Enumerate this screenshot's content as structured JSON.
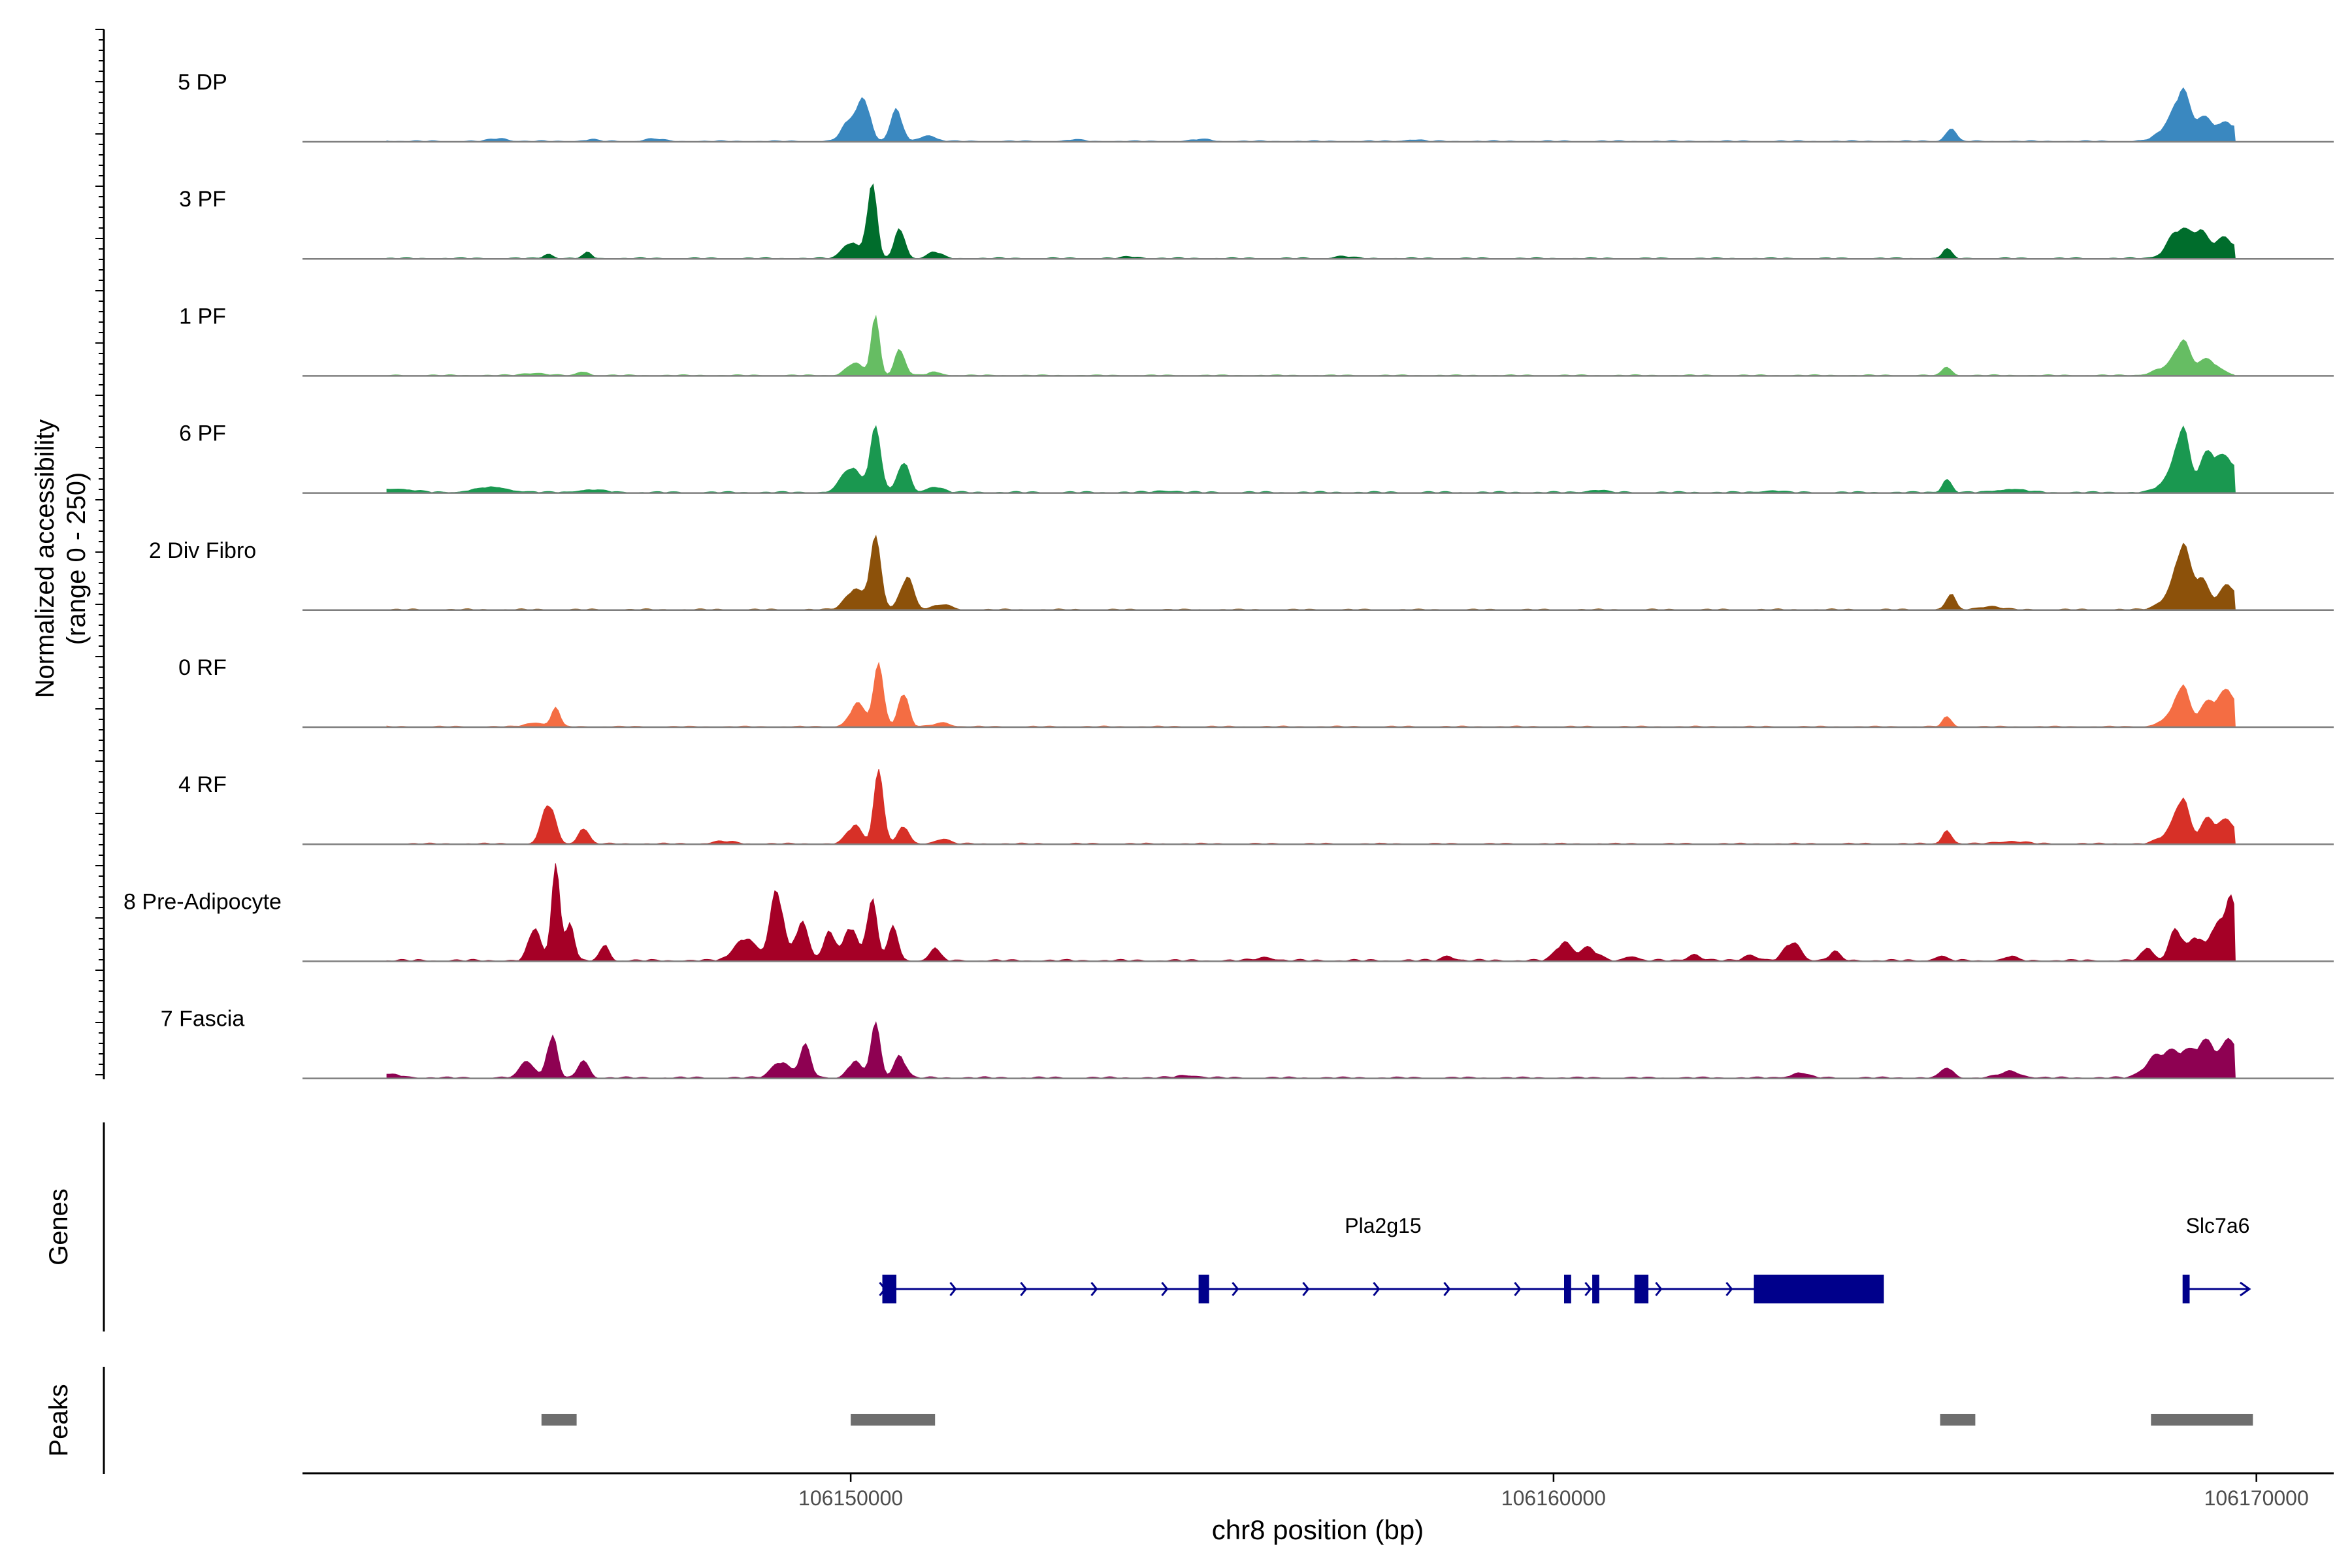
{
  "chart_data": {
    "type": "area",
    "title": "",
    "xlabel": "chr8 position (bp)",
    "ylabel_line1": "Normalized accessibility",
    "ylabel_line2": "(range 0 - 250)",
    "xlim": [
      106142200,
      106171100
    ],
    "ylim": [
      0,
      250
    ],
    "x_ticks": [
      {
        "value": 106150000,
        "label": "106150000"
      },
      {
        "value": 106160000,
        "label": "106160000"
      },
      {
        "value": 106170000,
        "label": "106170000"
      }
    ],
    "data_end": 106169700,
    "tracks": [
      {
        "name": "5 DP",
        "color": "#3a88c0",
        "peaks": [
          [
            106143200,
            5,
            150
          ],
          [
            106145000,
            7,
            120
          ],
          [
            106146300,
            4,
            100
          ],
          [
            106147200,
            6,
            120
          ],
          [
            106150000,
            55,
            110
          ],
          [
            106150200,
            95,
            80
          ],
          [
            106150650,
            75,
            80
          ],
          [
            106151100,
            14,
            110
          ],
          [
            106153200,
            4,
            100
          ],
          [
            106155000,
            5,
            120
          ],
          [
            106158000,
            4,
            120
          ],
          [
            106165650,
            32,
            70
          ],
          [
            106168850,
            55,
            180
          ],
          [
            106168950,
            78,
            90
          ],
          [
            106169250,
            50,
            120
          ],
          [
            106169600,
            45,
            150
          ]
        ],
        "noise": 3
      },
      {
        "name": "3 PF",
        "color": "#006d2c",
        "peaks": [
          [
            106145700,
            12,
            60
          ],
          [
            106146250,
            14,
            60
          ],
          [
            106150000,
            40,
            110
          ],
          [
            106150300,
            175,
            70
          ],
          [
            106150700,
            75,
            70
          ],
          [
            106151200,
            16,
            90
          ],
          [
            106154000,
            4,
            120
          ],
          [
            106157000,
            5,
            120
          ],
          [
            106165600,
            25,
            60
          ],
          [
            106168900,
            70,
            150
          ],
          [
            106169200,
            55,
            110
          ],
          [
            106169550,
            50,
            150
          ]
        ],
        "noise": 3
      },
      {
        "name": "1 PF",
        "color": "#66bd63",
        "peaks": [
          [
            106145500,
            6,
            150
          ],
          [
            106146200,
            10,
            70
          ],
          [
            106150050,
            30,
            110
          ],
          [
            106150350,
            135,
            60
          ],
          [
            106150700,
            65,
            70
          ],
          [
            106151200,
            8,
            100
          ],
          [
            106165600,
            22,
            60
          ],
          [
            106168800,
            25,
            200
          ],
          [
            106168950,
            65,
            90
          ],
          [
            106169300,
            38,
            150
          ]
        ],
        "noise": 3
      },
      {
        "name": "6 PF",
        "color": "#1a9850",
        "peaks": [
          [
            106143500,
            9,
            250
          ],
          [
            106144900,
            12,
            250
          ],
          [
            106146300,
            6,
            200
          ],
          [
            106150000,
            60,
            130
          ],
          [
            106150350,
            150,
            80
          ],
          [
            106150750,
            75,
            80
          ],
          [
            106151200,
            14,
            110
          ],
          [
            106154500,
            4,
            150
          ],
          [
            106160600,
            6,
            120
          ],
          [
            106163100,
            5,
            120
          ],
          [
            106165600,
            35,
            60
          ],
          [
            106166500,
            8,
            200
          ],
          [
            106168800,
            40,
            150
          ],
          [
            106168950,
            135,
            90
          ],
          [
            106169300,
            85,
            120
          ],
          [
            106169600,
            80,
            150
          ]
        ],
        "noise": 4
      },
      {
        "name": "2 Div Fibro",
        "color": "#8c510a",
        "peaks": [
          [
            106150050,
            50,
            120
          ],
          [
            106150350,
            165,
            80
          ],
          [
            106150800,
            80,
            90
          ],
          [
            106151300,
            12,
            120
          ],
          [
            106165650,
            40,
            60
          ],
          [
            106166200,
            8,
            150
          ],
          [
            106168800,
            40,
            150
          ],
          [
            106168950,
            130,
            90
          ],
          [
            106169200,
            75,
            110
          ],
          [
            106169600,
            60,
            130
          ]
        ],
        "noise": 3
      },
      {
        "name": "0 RF",
        "color": "#f46d43",
        "peaks": [
          [
            106145500,
            10,
            120
          ],
          [
            106145800,
            45,
            60
          ],
          [
            106150100,
            55,
            110
          ],
          [
            106150400,
            145,
            70
          ],
          [
            106150750,
            85,
            70
          ],
          [
            106151300,
            10,
            110
          ],
          [
            106165600,
            25,
            60
          ],
          [
            106168800,
            25,
            150
          ],
          [
            106168950,
            85,
            90
          ],
          [
            106169300,
            55,
            120
          ],
          [
            106169600,
            85,
            130
          ]
        ],
        "noise": 3
      },
      {
        "name": "4 RF",
        "color": "#d73027",
        "peaks": [
          [
            106145700,
            100,
            90
          ],
          [
            106146200,
            40,
            70
          ],
          [
            106148200,
            6,
            150
          ],
          [
            106150050,
            45,
            100
          ],
          [
            106150400,
            170,
            70
          ],
          [
            106150750,
            45,
            70
          ],
          [
            106151300,
            12,
            100
          ],
          [
            106165600,
            35,
            60
          ],
          [
            106166500,
            6,
            200
          ],
          [
            106168800,
            30,
            150
          ],
          [
            106168950,
            95,
            90
          ],
          [
            106169300,
            55,
            110
          ],
          [
            106169600,
            55,
            130
          ]
        ],
        "noise": 3
      },
      {
        "name": "8 Pre-Adipocyte",
        "color": "#a50026",
        "peaks": [
          [
            106145500,
            80,
            80
          ],
          [
            106145800,
            225,
            60
          ],
          [
            106146000,
            95,
            60
          ],
          [
            106146500,
            40,
            60
          ],
          [
            106148500,
            55,
            150
          ],
          [
            106148950,
            170,
            90
          ],
          [
            106149300,
            95,
            90
          ],
          [
            106149700,
            70,
            80
          ],
          [
            106150000,
            85,
            90
          ],
          [
            106150300,
            150,
            70
          ],
          [
            106150600,
            80,
            70
          ],
          [
            106151200,
            30,
            70
          ],
          [
            106155900,
            8,
            120
          ],
          [
            106158500,
            12,
            80
          ],
          [
            106160150,
            45,
            110
          ],
          [
            106160500,
            30,
            120
          ],
          [
            106161100,
            12,
            80
          ],
          [
            106162000,
            15,
            90
          ],
          [
            106162800,
            15,
            90
          ],
          [
            106163400,
            45,
            110
          ],
          [
            106164000,
            20,
            80
          ],
          [
            106165500,
            10,
            90
          ],
          [
            106166500,
            10,
            80
          ],
          [
            106168450,
            30,
            80
          ],
          [
            106168850,
            75,
            90
          ],
          [
            106169150,
            55,
            110
          ],
          [
            106169450,
            95,
            90
          ],
          [
            106169650,
            160,
            70
          ]
        ],
        "noise": 5
      },
      {
        "name": "7 Fascia",
        "color": "#8e0152",
        "peaks": [
          [
            106143400,
            8,
            200
          ],
          [
            106145400,
            40,
            100
          ],
          [
            106145750,
            105,
            70
          ],
          [
            106146200,
            45,
            70
          ],
          [
            106149000,
            40,
            120
          ],
          [
            106149350,
            75,
            80
          ],
          [
            106150050,
            40,
            90
          ],
          [
            106150350,
            125,
            70
          ],
          [
            106150700,
            55,
            80
          ],
          [
            106154800,
            6,
            150
          ],
          [
            106163500,
            12,
            120
          ],
          [
            106165600,
            25,
            80
          ],
          [
            106166500,
            15,
            150
          ],
          [
            106168550,
            40,
            150
          ],
          [
            106168900,
            60,
            200
          ],
          [
            106169300,
            80,
            150
          ],
          [
            106169650,
            90,
            110
          ]
        ],
        "noise": 4
      }
    ],
    "genes_label": "Genes",
    "genes": [
      {
        "name": "Pla2g15",
        "start": 106150450,
        "end": 106164700,
        "strand": "+",
        "exons": [
          [
            106150450,
            106150650
          ],
          [
            106154950,
            106155100
          ],
          [
            106160150,
            106160250
          ],
          [
            106160550,
            106160650
          ],
          [
            106161150,
            106161350
          ],
          [
            106162850,
            106164700
          ]
        ]
      },
      {
        "name": "Slc7a6",
        "start": 106169000,
        "end": 106169900,
        "strand": "+",
        "exons": [
          [
            106168950,
            106169050
          ]
        ]
      }
    ],
    "peaks_label": "Peaks",
    "peak_regions": [
      [
        106145600,
        106146100
      ],
      [
        106150000,
        106151200
      ],
      [
        106165500,
        106166000
      ],
      [
        106168500,
        106169950
      ]
    ]
  }
}
